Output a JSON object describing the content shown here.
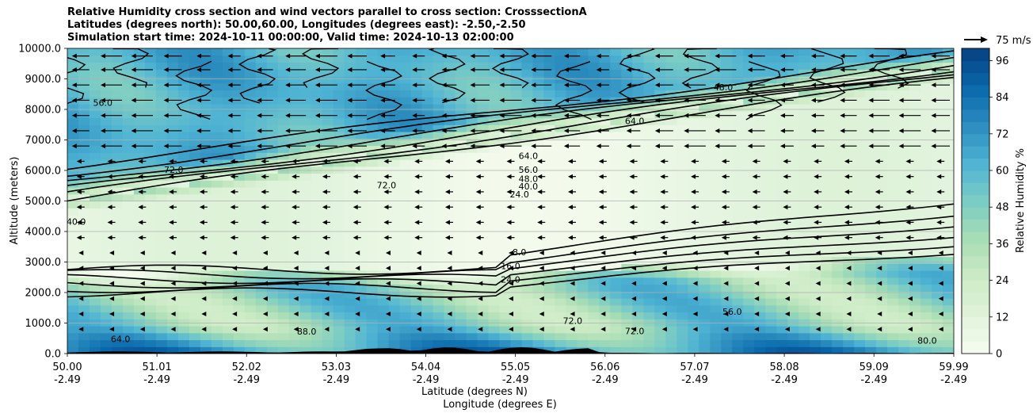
{
  "chart_data": {
    "type": "heatmap",
    "title": [
      "Relative Humidity cross section and wind vectors parallel to cross section: CrosssectionA",
      "Latitudes (degrees north): 50.00,60.00, Longitudes (degrees east): -2.50,-2.50",
      "Simulation start time: 2024-10-11 00:00:00, Valid time: 2024-10-13 02:00:00"
    ],
    "xlabel": "Latitude (degrees N)",
    "xlabel2": "Longitude (degrees E)",
    "ylabel": "Altitude (meters)",
    "colorbar_label": "Relative Humidity %",
    "quiver_key": "75 m/s",
    "x_ticks": [
      {
        "lat": "50.00",
        "lon": "-2.49"
      },
      {
        "lat": "51.01",
        "lon": "-2.49"
      },
      {
        "lat": "52.02",
        "lon": "-2.49"
      },
      {
        "lat": "53.03",
        "lon": "-2.49"
      },
      {
        "lat": "54.04",
        "lon": "-2.49"
      },
      {
        "lat": "55.05",
        "lon": "-2.49"
      },
      {
        "lat": "56.06",
        "lon": "-2.49"
      },
      {
        "lat": "57.07",
        "lon": "-2.49"
      },
      {
        "lat": "58.08",
        "lon": "-2.49"
      },
      {
        "lat": "59.09",
        "lon": "-2.49"
      },
      {
        "lat": "59.99",
        "lon": "-2.49"
      }
    ],
    "y_ticks": [
      "0.0",
      "1000.0",
      "2000.0",
      "3000.0",
      "4000.0",
      "5000.0",
      "6000.0",
      "7000.0",
      "8000.0",
      "9000.0",
      "10000.0"
    ],
    "xlim": [
      50.0,
      59.99
    ],
    "ylim": [
      0,
      10000
    ],
    "colorbar_ticks": [
      "0",
      "12",
      "24",
      "36",
      "48",
      "60",
      "72",
      "84",
      "96"
    ],
    "colorbar_range": [
      0,
      100
    ],
    "colormap": [
      "#f7fcf0",
      "#e0f3db",
      "#ccebc5",
      "#a8ddb5",
      "#7bccc4",
      "#4eb3d3",
      "#2b8cbe",
      "#0868ac",
      "#084081"
    ],
    "contour_labels": [
      "8.0",
      "16.0",
      "24.0",
      "40.0",
      "48.0",
      "56.0",
      "64.0",
      "72.0",
      "80.0",
      "88.0"
    ],
    "grid": "horizontal"
  }
}
